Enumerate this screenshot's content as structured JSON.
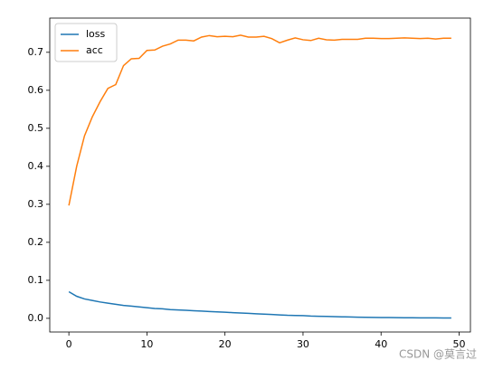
{
  "chart_data": {
    "type": "line",
    "x": [
      0,
      1,
      2,
      3,
      4,
      5,
      6,
      7,
      8,
      9,
      10,
      11,
      12,
      13,
      14,
      15,
      16,
      17,
      18,
      19,
      20,
      21,
      22,
      23,
      24,
      25,
      26,
      27,
      28,
      29,
      30,
      31,
      32,
      33,
      34,
      35,
      36,
      37,
      38,
      39,
      40,
      41,
      42,
      43,
      44,
      45,
      46,
      47,
      48,
      49
    ],
    "series": [
      {
        "name": "loss",
        "color": "#1f77b4",
        "values": [
          0.07,
          0.058,
          0.051,
          0.047,
          0.043,
          0.04,
          0.037,
          0.034,
          0.032,
          0.03,
          0.028,
          0.026,
          0.025,
          0.023,
          0.022,
          0.021,
          0.02,
          0.019,
          0.018,
          0.017,
          0.016,
          0.015,
          0.014,
          0.013,
          0.012,
          0.011,
          0.01,
          0.009,
          0.008,
          0.0075,
          0.007,
          0.006,
          0.0055,
          0.005,
          0.0045,
          0.004,
          0.0035,
          0.003,
          0.0028,
          0.0025,
          0.0022,
          0.002,
          0.0018,
          0.0016,
          0.0015,
          0.0013,
          0.0012,
          0.0011,
          0.001,
          0.001
        ]
      },
      {
        "name": "acc",
        "color": "#ff7f0e",
        "values": [
          0.297,
          0.4,
          0.48,
          0.53,
          0.57,
          0.605,
          0.615,
          0.665,
          0.683,
          0.684,
          0.705,
          0.706,
          0.716,
          0.722,
          0.732,
          0.732,
          0.73,
          0.74,
          0.744,
          0.741,
          0.742,
          0.741,
          0.745,
          0.74,
          0.74,
          0.742,
          0.736,
          0.725,
          0.732,
          0.738,
          0.733,
          0.731,
          0.737,
          0.733,
          0.732,
          0.734,
          0.734,
          0.734,
          0.737,
          0.737,
          0.736,
          0.736,
          0.737,
          0.738,
          0.737,
          0.736,
          0.737,
          0.735,
          0.737,
          0.737
        ]
      }
    ],
    "xlim": [
      -2.45,
      51.45
    ],
    "ylim": [
      -0.036,
      0.79
    ],
    "xticks": [
      0,
      10,
      20,
      30,
      40,
      50
    ],
    "yticks": [
      {
        "value": 0,
        "label": "0.0"
      },
      0.1,
      0.2,
      0.3,
      0.4,
      0.5,
      0.6,
      0.7
    ],
    "legend": "upper left",
    "watermark": "CSDN @莫言过"
  }
}
